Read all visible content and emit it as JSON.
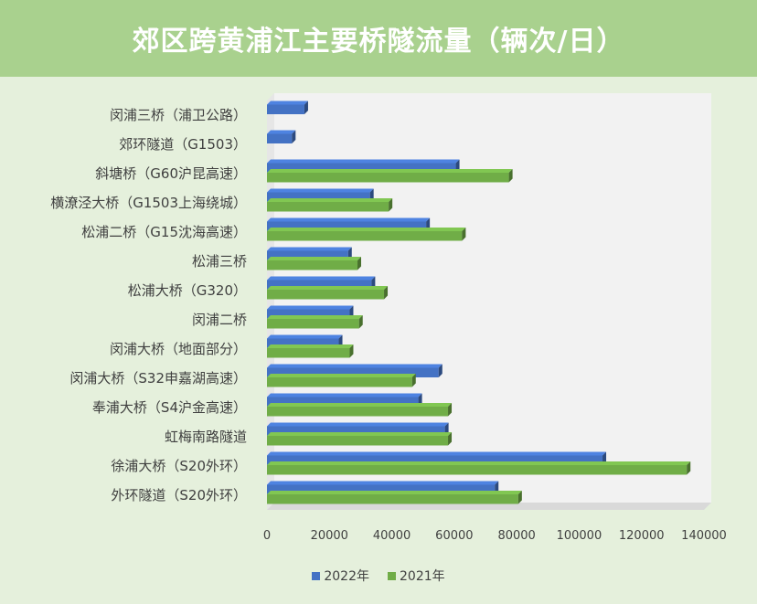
{
  "chart_data": {
    "type": "bar",
    "orientation": "horizontal",
    "title": "郊区跨黄浦江主要桥隧流量（辆次/日）",
    "categories": [
      "闵浦三桥（浦卫公路）",
      "郊环隧道（G1503）",
      "斜塘桥（G60沪昆高速）",
      "横潦泾大桥（G1503上海绕城）",
      "松浦二桥（G15沈海高速）",
      "松浦三桥",
      "松浦大桥（G320）",
      "闵浦二桥",
      "闵浦大桥（地面部分）",
      "闵浦大桥（S32申嘉湖高速）",
      "奉浦大桥（S4沪金高速）",
      "虹梅南路隧道",
      "徐浦大桥（S20外环）",
      "外环隧道（S20外环）"
    ],
    "series": [
      {
        "name": "2022年",
        "color": "#4472c4",
        "values": [
          12000,
          8000,
          60500,
          33000,
          51000,
          26000,
          33500,
          26500,
          23000,
          55000,
          48500,
          57000,
          107500,
          73000
        ]
      },
      {
        "name": "2021年",
        "color": "#70ad47",
        "values": [
          null,
          null,
          77500,
          39000,
          62500,
          29000,
          37500,
          29500,
          26500,
          46500,
          58000,
          58000,
          134500,
          80500
        ]
      }
    ],
    "xlim": [
      0,
      140000
    ],
    "xticks": [
      "0",
      "20000",
      "40000",
      "60000",
      "80000",
      "100000",
      "120000",
      "140000"
    ],
    "grid": false,
    "legend_position": "bottom"
  }
}
